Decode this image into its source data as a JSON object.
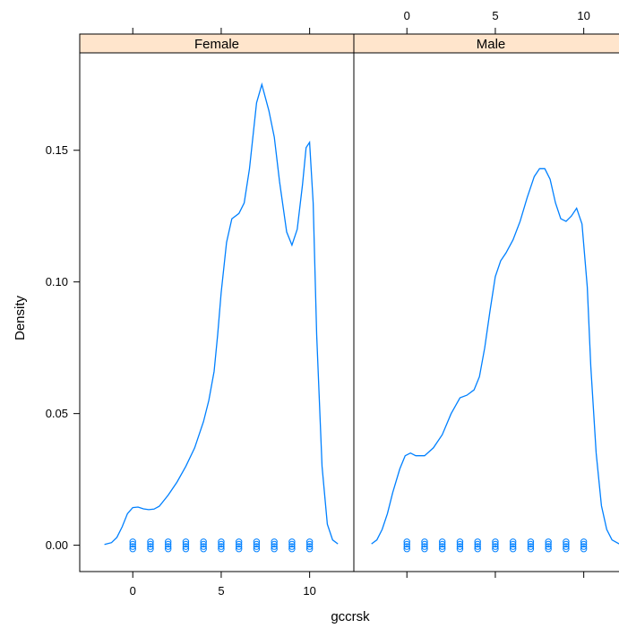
{
  "chart_data": {
    "type": "line",
    "subtype": "density plot with rug points (lattice, two panels)",
    "xlabel": "gccrsk",
    "ylabel": "Density",
    "xlim": [
      -3,
      12.5
    ],
    "ylim": [
      -0.01,
      0.187
    ],
    "x_ticks": [
      0,
      5,
      10
    ],
    "y_ticks": [
      0.0,
      0.05,
      0.1,
      0.15
    ],
    "y_tick_labels": [
      "0.00",
      "0.05",
      "0.10",
      "0.15"
    ],
    "x_tick_labels": [
      "0",
      "5",
      "10"
    ],
    "line_color": "#0080ff",
    "strip_color": "#ffe5cc",
    "panels": [
      {
        "name": "Female",
        "curve": {
          "x": [
            -1.6,
            -1.2,
            -0.9,
            -0.6,
            -0.3,
            0.0,
            0.3,
            0.6,
            0.9,
            1.2,
            1.5,
            2.0,
            2.5,
            3.0,
            3.5,
            4.0,
            4.3,
            4.6,
            4.8,
            5.0,
            5.3,
            5.6,
            6.0,
            6.3,
            6.6,
            7.0,
            7.3,
            7.7,
            8.0,
            8.3,
            8.7,
            9.0,
            9.3,
            9.6,
            9.8,
            10.0,
            10.2,
            10.4,
            10.7,
            11.0,
            11.3,
            11.6
          ],
          "y": [
            0.0003,
            0.001,
            0.003,
            0.007,
            0.012,
            0.0143,
            0.0145,
            0.0138,
            0.0135,
            0.0137,
            0.0148,
            0.019,
            0.024,
            0.03,
            0.037,
            0.047,
            0.055,
            0.066,
            0.08,
            0.096,
            0.115,
            0.124,
            0.126,
            0.13,
            0.143,
            0.168,
            0.175,
            0.165,
            0.155,
            0.138,
            0.119,
            0.114,
            0.12,
            0.137,
            0.151,
            0.153,
            0.13,
            0.08,
            0.03,
            0.008,
            0.002,
            0.0005
          ]
        },
        "rug_x": [
          0,
          1,
          2,
          3,
          4,
          5,
          6,
          7,
          8,
          9,
          10
        ]
      },
      {
        "name": "Male",
        "curve": {
          "x": [
            -2.0,
            -1.7,
            -1.4,
            -1.1,
            -0.8,
            -0.4,
            -0.1,
            0.2,
            0.5,
            1.0,
            1.5,
            2.0,
            2.5,
            3.0,
            3.4,
            3.8,
            4.1,
            4.4,
            4.7,
            5.0,
            5.3,
            5.6,
            6.0,
            6.4,
            6.8,
            7.2,
            7.5,
            7.8,
            8.1,
            8.4,
            8.7,
            9.0,
            9.3,
            9.6,
            9.9,
            10.2,
            10.4,
            10.7,
            11.0,
            11.3,
            11.6,
            12.0
          ],
          "y": [
            0.0005,
            0.002,
            0.006,
            0.012,
            0.02,
            0.029,
            0.034,
            0.035,
            0.034,
            0.034,
            0.037,
            0.042,
            0.05,
            0.056,
            0.057,
            0.059,
            0.064,
            0.075,
            0.089,
            0.102,
            0.108,
            0.111,
            0.116,
            0.123,
            0.132,
            0.14,
            0.143,
            0.143,
            0.139,
            0.13,
            0.124,
            0.123,
            0.125,
            0.128,
            0.122,
            0.098,
            0.068,
            0.035,
            0.015,
            0.006,
            0.002,
            0.0005
          ]
        },
        "rug_x": [
          0,
          1,
          2,
          3,
          4,
          5,
          6,
          7,
          8,
          9,
          10
        ]
      }
    ]
  }
}
